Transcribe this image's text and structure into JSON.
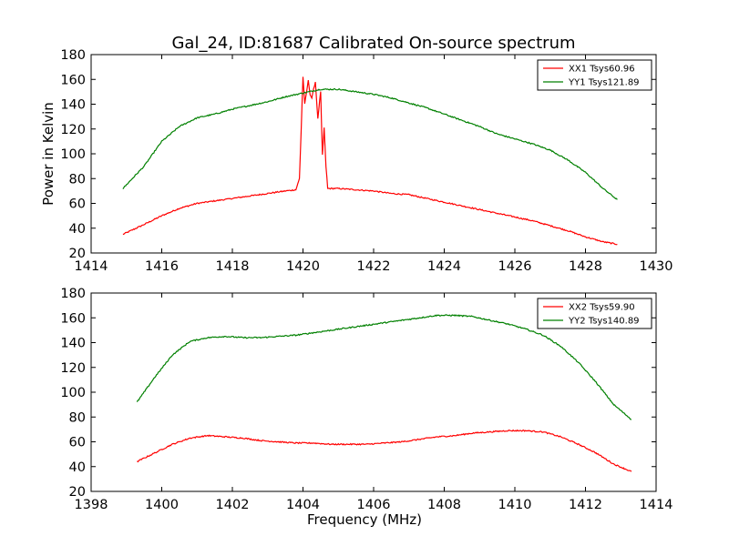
{
  "figure": {
    "title": "Gal_24, ID:81687 Calibrated On-source spectrum"
  },
  "chart_data": [
    {
      "type": "line",
      "title": "Gal_24, ID:81687 Calibrated On-source spectrum",
      "xlabel": "",
      "ylabel": "Power in Kelvin",
      "xlim": [
        1414,
        1430
      ],
      "ylim": [
        20,
        180
      ],
      "xticks": [
        1414,
        1416,
        1418,
        1420,
        1422,
        1424,
        1426,
        1428,
        1430
      ],
      "yticks": [
        20,
        40,
        60,
        80,
        100,
        120,
        140,
        160,
        180
      ],
      "legend_position": "top-right",
      "grid": false,
      "series": [
        {
          "name": "XX1 Tsys60.96",
          "color": "#ff0000",
          "x": [
            1414.9,
            1415.5,
            1416.0,
            1416.5,
            1417.0,
            1417.5,
            1418.0,
            1418.5,
            1419.0,
            1419.5,
            1419.8,
            1419.9,
            1420.0,
            1420.05,
            1420.15,
            1420.2,
            1420.25,
            1420.3,
            1420.35,
            1420.42,
            1420.5,
            1420.55,
            1420.6,
            1420.65,
            1420.7,
            1420.8,
            1421.0,
            1421.5,
            1422.0,
            1422.5,
            1423.0,
            1423.5,
            1424.0,
            1424.5,
            1425.0,
            1425.5,
            1426.0,
            1426.5,
            1427.0,
            1427.5,
            1428.0,
            1428.5,
            1428.9
          ],
          "y": [
            35,
            43,
            50,
            56,
            60,
            62,
            64,
            66,
            68,
            70,
            71,
            80,
            162,
            140,
            159,
            148,
            145,
            152,
            158,
            128,
            150,
            99,
            121,
            90,
            72,
            72,
            72,
            71,
            70,
            68,
            67,
            64,
            61,
            58,
            55,
            52,
            49,
            46,
            42,
            38,
            33,
            29,
            27
          ]
        },
        {
          "name": "YY1 Tsys121.89",
          "color": "#008000",
          "x": [
            1414.9,
            1415.5,
            1416.0,
            1416.5,
            1417.0,
            1417.5,
            1418.0,
            1418.5,
            1419.0,
            1419.5,
            1420.0,
            1420.5,
            1421.0,
            1421.5,
            1422.0,
            1422.5,
            1423.0,
            1423.5,
            1424.0,
            1424.5,
            1425.0,
            1425.5,
            1426.0,
            1426.5,
            1427.0,
            1427.5,
            1428.0,
            1428.5,
            1428.9
          ],
          "y": [
            72,
            90,
            110,
            122,
            129,
            132,
            136,
            139,
            142,
            146,
            149,
            152,
            152,
            150,
            148,
            145,
            141,
            137,
            132,
            127,
            122,
            116,
            112,
            108,
            103,
            95,
            85,
            72,
            63
          ]
        }
      ]
    },
    {
      "type": "line",
      "title": "",
      "xlabel": "Frequency (MHz)",
      "ylabel": "",
      "xlim": [
        1398,
        1414
      ],
      "ylim": [
        20,
        180
      ],
      "xticks": [
        1398,
        1400,
        1402,
        1404,
        1406,
        1408,
        1410,
        1412,
        1414
      ],
      "yticks": [
        20,
        40,
        60,
        80,
        100,
        120,
        140,
        160,
        180
      ],
      "legend_position": "top-right",
      "grid": false,
      "series": [
        {
          "name": "XX2 Tsys59.90",
          "color": "#ff0000",
          "x": [
            1399.3,
            1399.8,
            1400.3,
            1400.8,
            1401.3,
            1401.8,
            1402.3,
            1402.8,
            1403.3,
            1403.8,
            1404.3,
            1404.8,
            1405.3,
            1405.8,
            1406.3,
            1406.8,
            1407.3,
            1407.8,
            1408.3,
            1408.8,
            1409.3,
            1409.8,
            1410.3,
            1410.8,
            1411.3,
            1411.8,
            1412.3,
            1412.8,
            1413.3
          ],
          "y": [
            44,
            51,
            58,
            63,
            65,
            64,
            63,
            61,
            60,
            59,
            59,
            58,
            58,
            58,
            59,
            60,
            62,
            64,
            65,
            67,
            68,
            69,
            69,
            68,
            64,
            58,
            51,
            42,
            36
          ]
        },
        {
          "name": "YY2 Tsys140.89",
          "color": "#008000",
          "x": [
            1399.3,
            1399.8,
            1400.3,
            1400.8,
            1401.3,
            1401.8,
            1402.3,
            1402.8,
            1403.3,
            1403.8,
            1404.3,
            1404.8,
            1405.3,
            1405.8,
            1406.3,
            1406.8,
            1407.3,
            1407.8,
            1408.3,
            1408.8,
            1409.3,
            1409.8,
            1410.3,
            1410.8,
            1411.3,
            1411.8,
            1412.3,
            1412.8,
            1413.3
          ],
          "y": [
            92,
            112,
            130,
            141,
            144,
            145,
            144,
            144,
            145,
            146,
            148,
            150,
            152,
            154,
            156,
            158,
            160,
            162,
            162,
            161,
            158,
            155,
            151,
            146,
            137,
            124,
            108,
            90,
            78
          ]
        }
      ]
    }
  ]
}
